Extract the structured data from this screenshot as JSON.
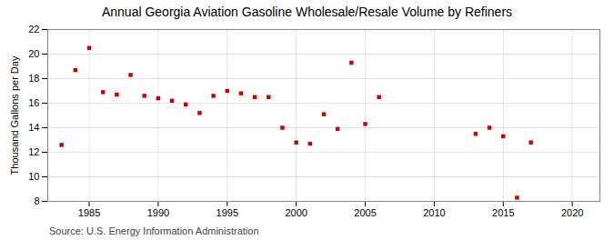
{
  "chart_data": {
    "type": "scatter",
    "title": "Annual Georgia Aviation Gasoline Wholesale/Resale Volume by Refiners",
    "ylabel": "Thousand Gallons per Day",
    "source": "Source: U.S. Energy Information Administration",
    "color": "#cc0000",
    "marker": "square",
    "x": [
      1983,
      1984,
      1985,
      1986,
      1987,
      1988,
      1989,
      1990,
      1991,
      1992,
      1993,
      1994,
      1995,
      1996,
      1997,
      1998,
      1999,
      2000,
      2001,
      2002,
      2003,
      2004,
      2005,
      2006,
      2013,
      2014,
      2015,
      2016,
      2017
    ],
    "values": [
      12.6,
      18.7,
      20.5,
      16.9,
      16.7,
      18.3,
      16.6,
      16.4,
      16.2,
      15.9,
      15.2,
      16.6,
      17.0,
      16.8,
      16.5,
      16.5,
      14.0,
      12.8,
      12.7,
      15.1,
      13.9,
      19.3,
      14.3,
      16.5,
      13.5,
      14.0,
      13.3,
      8.3,
      12.8
    ],
    "xlim": [
      1982,
      2022
    ],
    "ylim": [
      8,
      22
    ],
    "xticks": [
      1985,
      1990,
      1995,
      2000,
      2005,
      2010,
      2015,
      2020
    ],
    "yticks": [
      8,
      10,
      12,
      14,
      16,
      18,
      20,
      22
    ],
    "grid": true
  }
}
